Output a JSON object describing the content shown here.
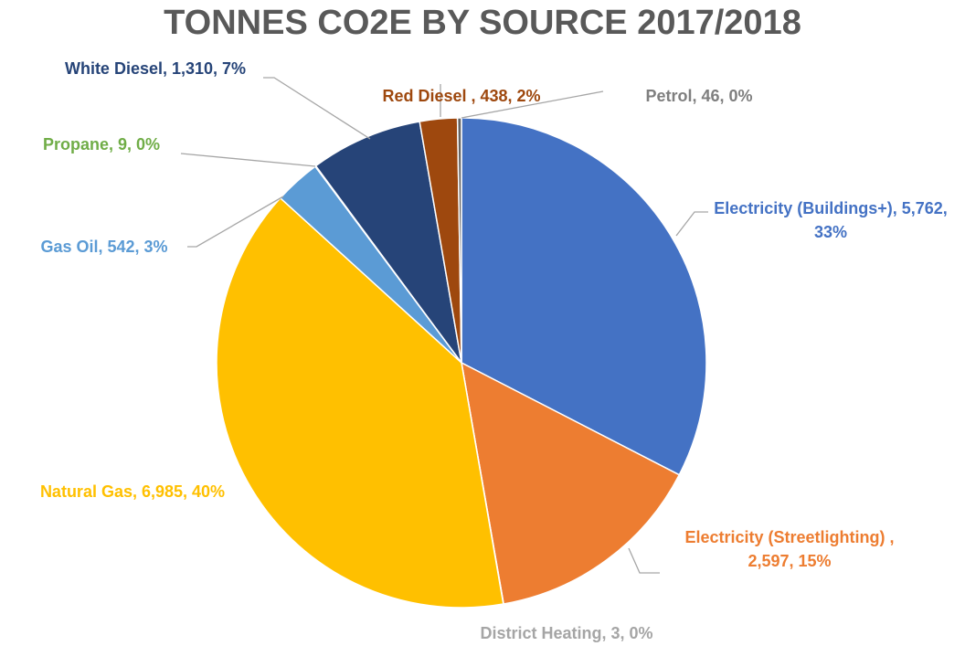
{
  "chart_data": {
    "type": "pie",
    "title": "TONNES CO2E BY SOURCE 2017/2018",
    "values": [
      5762,
      2597,
      3,
      6985,
      542,
      9,
      1310,
      438,
      46
    ],
    "value_labels": [
      "Electricity (Buildings+), 5,762, 33%",
      "Electricity (Streetlighting) , 2,597, 15%",
      "District Heating, 3, 0%",
      "Natural Gas, 6,985, 40%",
      "Gas Oil, 542, 3%",
      "Propane, 9, 0%",
      "White Diesel, 1,310, 7%",
      "Red Diesel , 438, 2%",
      "Petrol, 46, 0%"
    ],
    "colors": [
      "#4472c4",
      "#ed7d31",
      "#a5a5a5",
      "#ffc000",
      "#5b9bd5",
      "#70ad47",
      "#264478",
      "#9e480e",
      "#636363"
    ],
    "label_colors": [
      "#4472c4",
      "#ed7d31",
      "#a5a5a5",
      "#ffc000",
      "#5b9bd5",
      "#70ad47",
      "#264478",
      "#9e480e",
      "#7f7f7f"
    ]
  }
}
